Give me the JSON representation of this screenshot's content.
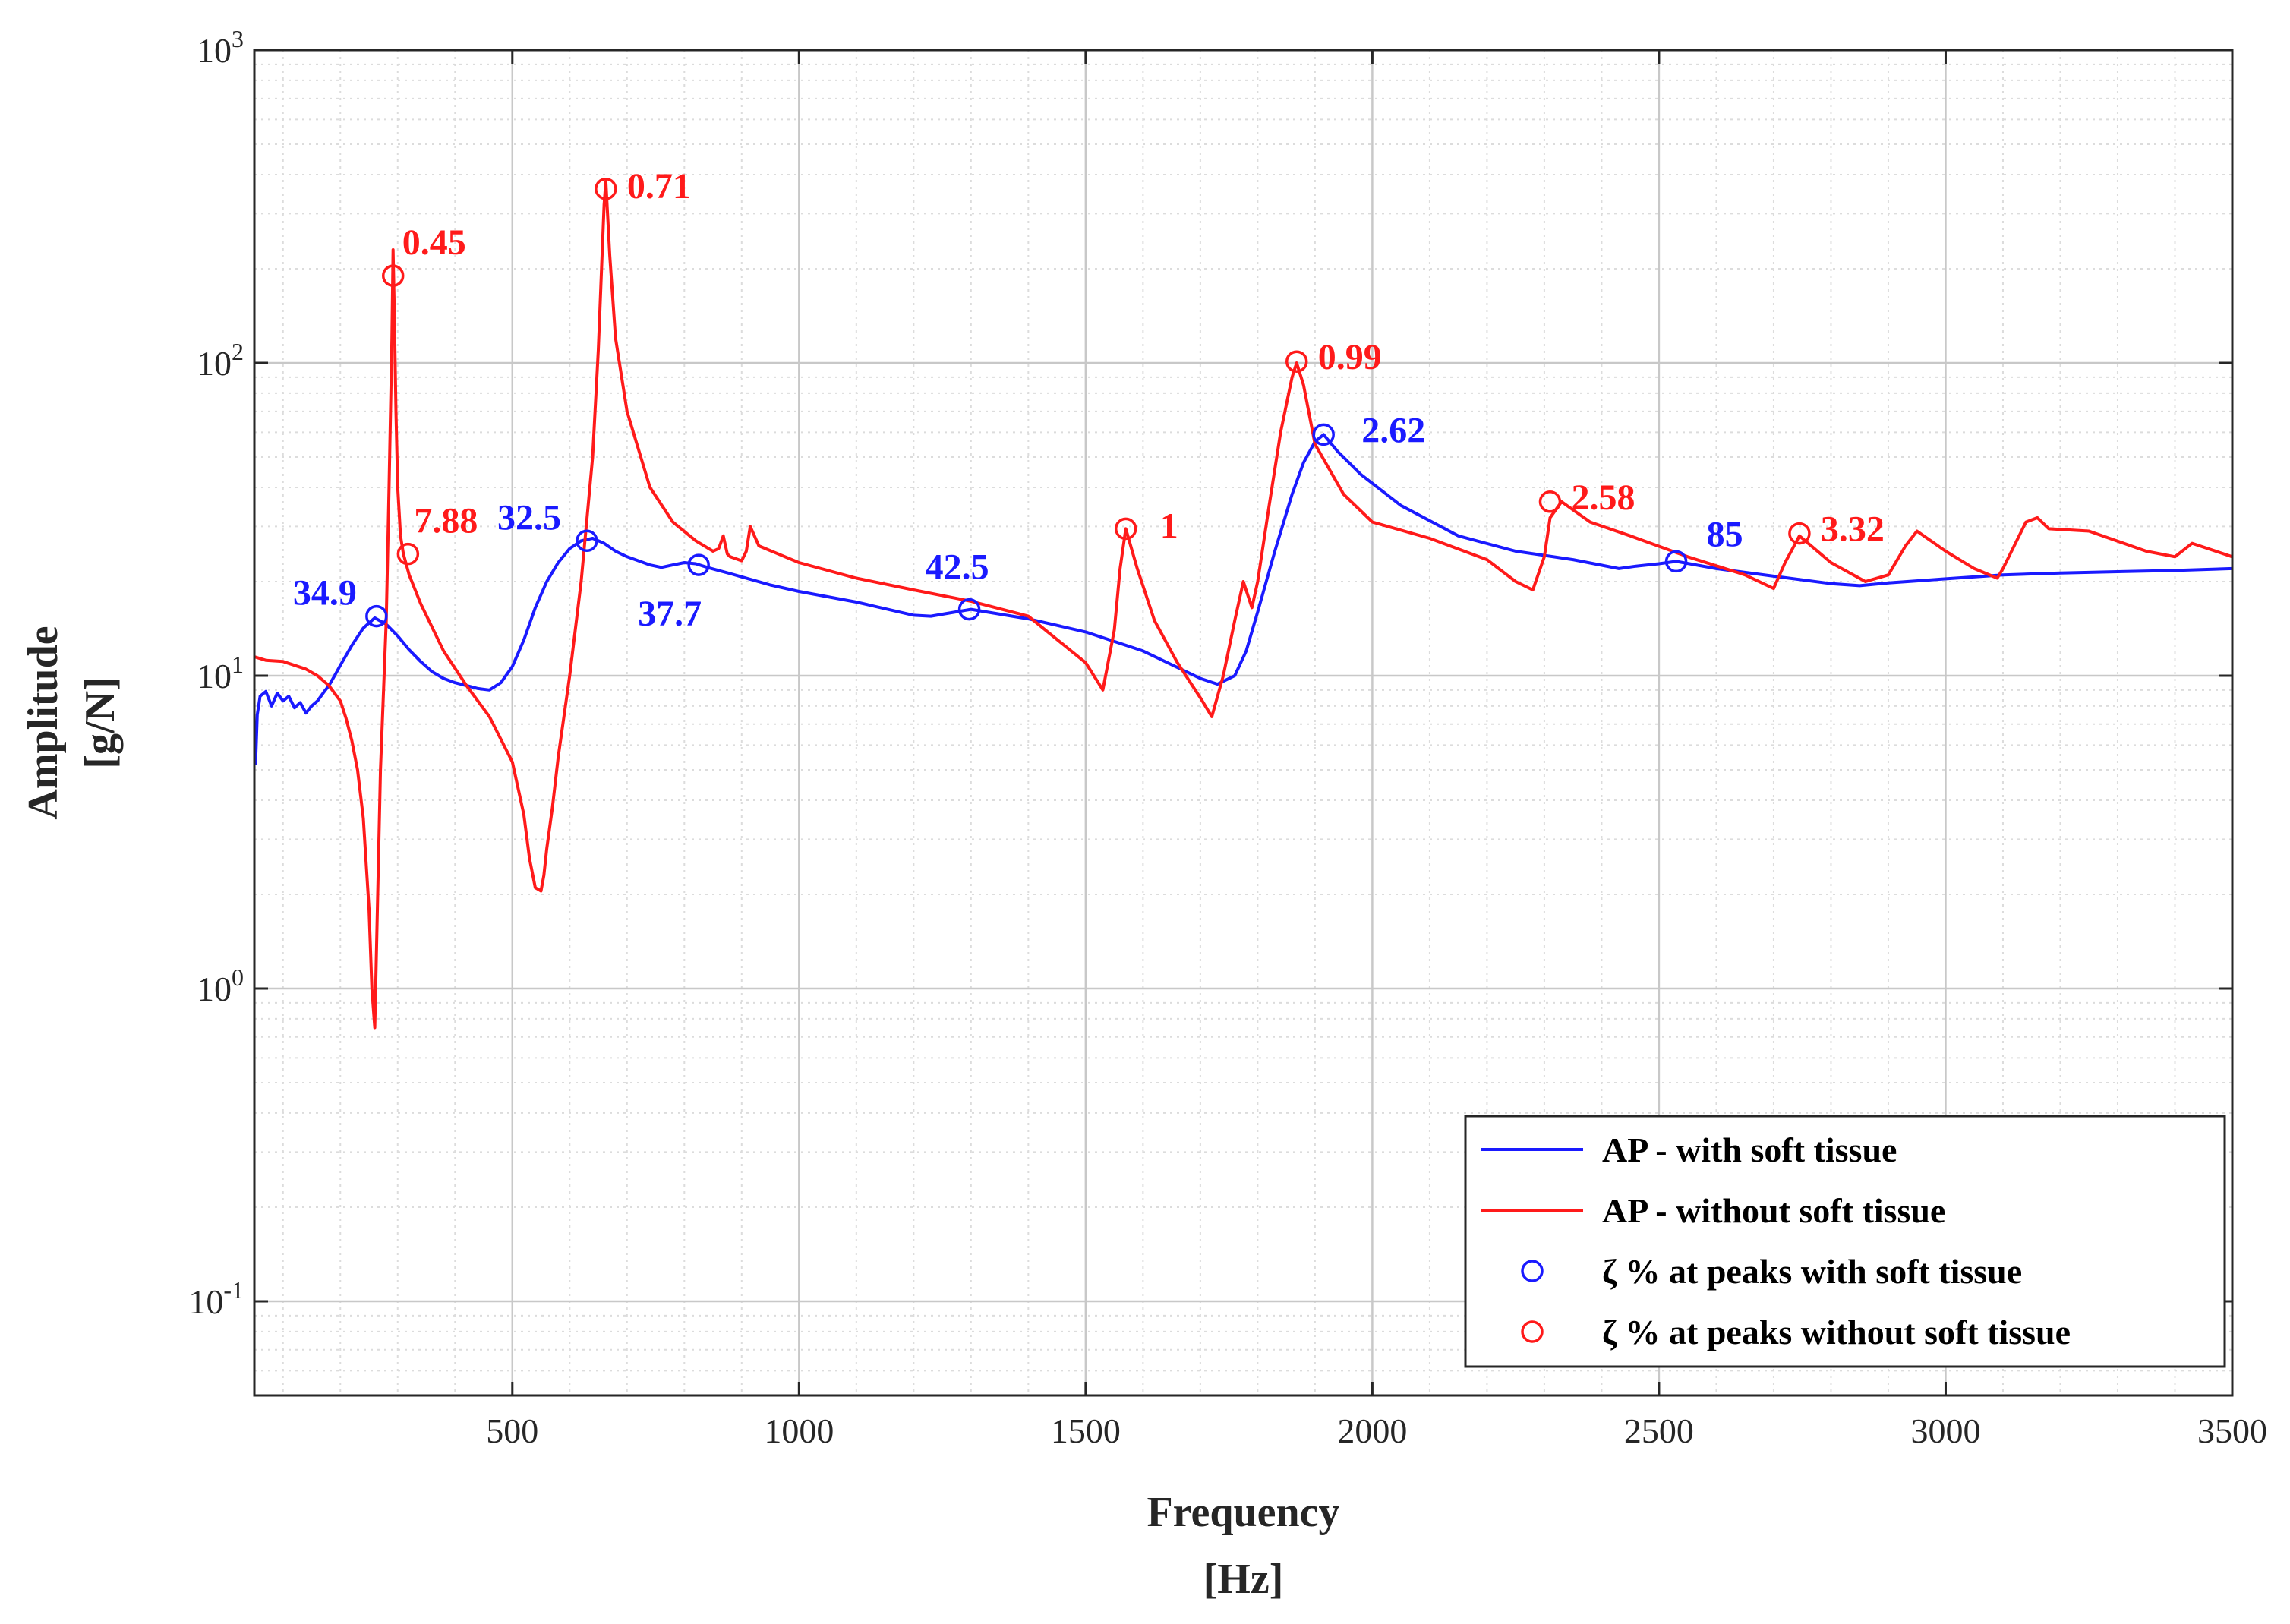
{
  "chart_data": {
    "type": "line",
    "title": "",
    "xlabel": "Frequency",
    "xunit": "[Hz]",
    "ylabel": "Amplitude",
    "yunit": "[g/N]",
    "xscale": "linear",
    "yscale": "log",
    "xlim": [
      50,
      3500
    ],
    "ylim": [
      0.05,
      1000
    ],
    "xticks": [
      500,
      1000,
      1500,
      2000,
      2500,
      3000,
      3500
    ],
    "xtick_labels": [
      "500",
      "1000",
      "1500",
      "2000",
      "2500",
      "3000",
      "3500"
    ],
    "yticks": [
      {
        "value": 1000,
        "base": "10",
        "exp": "3"
      },
      {
        "value": 100,
        "base": "10",
        "exp": "2"
      },
      {
        "value": 10,
        "base": "10",
        "exp": "1"
      },
      {
        "value": 1,
        "base": "10",
        "exp": "0"
      },
      {
        "value": 0.1,
        "base": "10",
        "exp": "-1"
      }
    ],
    "grid": true,
    "minor_grid": true,
    "legend_position": "bottom-right",
    "colors": {
      "with": "#1a1aff",
      "without": "#ff1a1a",
      "axis": "#262626",
      "grid": "#dcdcdc"
    },
    "series": [
      {
        "name": "AP - with soft tissue",
        "color": "#1a1aff",
        "x": [
          52,
          55,
          60,
          70,
          80,
          90,
          100,
          110,
          120,
          130,
          140,
          150,
          160,
          170,
          180,
          190,
          200,
          220,
          240,
          260,
          280,
          300,
          320,
          340,
          360,
          380,
          400,
          420,
          440,
          460,
          480,
          500,
          520,
          540,
          560,
          580,
          600,
          620,
          640,
          660,
          680,
          700,
          720,
          740,
          760,
          780,
          800,
          820,
          840,
          860,
          880,
          900,
          950,
          1000,
          1100,
          1200,
          1230,
          1300,
          1400,
          1500,
          1600,
          1700,
          1730,
          1760,
          1780,
          1800,
          1830,
          1860,
          1880,
          1900,
          1915,
          1940,
          1980,
          2050,
          2150,
          2250,
          2350,
          2430,
          2460,
          2500,
          2530,
          2600,
          2700,
          2800,
          2850,
          2900,
          3000,
          3100,
          3200,
          3300,
          3400,
          3500
        ],
        "y": [
          5.2,
          7.5,
          8.6,
          8.9,
          8.0,
          8.8,
          8.3,
          8.6,
          7.9,
          8.2,
          7.6,
          8.0,
          8.3,
          8.8,
          9.3,
          10.0,
          10.8,
          12.5,
          14.2,
          15.3,
          14.6,
          13.4,
          12.1,
          11.1,
          10.3,
          9.8,
          9.5,
          9.3,
          9.1,
          9.0,
          9.5,
          10.7,
          13.0,
          16.5,
          20.0,
          23.0,
          25.5,
          27.0,
          27.5,
          26.5,
          25.0,
          24.0,
          23.3,
          22.6,
          22.2,
          22.6,
          23.0,
          22.8,
          22.2,
          21.7,
          21.2,
          20.7,
          19.5,
          18.6,
          17.2,
          15.6,
          15.5,
          16.3,
          15.2,
          13.8,
          12.0,
          9.8,
          9.4,
          10.0,
          12.0,
          16.0,
          25.0,
          38.0,
          48.0,
          56.0,
          59.0,
          52.0,
          44.0,
          35.0,
          28.0,
          25.0,
          23.5,
          22.0,
          22.4,
          22.8,
          23.2,
          22.0,
          20.8,
          19.7,
          19.4,
          19.8,
          20.4,
          21.0,
          21.3,
          21.5,
          21.7,
          22.0
        ]
      },
      {
        "name": "AP - without soft tissue",
        "color": "#ff1a1a",
        "x": [
          50,
          70,
          100,
          140,
          160,
          180,
          200,
          210,
          220,
          230,
          240,
          250,
          255,
          260,
          270,
          280,
          285,
          290,
          292,
          294,
          297,
          300,
          305,
          310,
          320,
          340,
          380,
          420,
          460,
          500,
          520,
          530,
          540,
          550,
          555,
          560,
          570,
          580,
          600,
          620,
          640,
          650,
          660,
          663,
          670,
          680,
          700,
          740,
          780,
          820,
          850,
          860,
          868,
          875,
          880,
          900,
          908,
          915,
          930,
          1000,
          1100,
          1200,
          1300,
          1400,
          1500,
          1530,
          1550,
          1560,
          1570,
          1590,
          1620,
          1660,
          1700,
          1720,
          1740,
          1760,
          1775,
          1790,
          1800,
          1820,
          1840,
          1860,
          1868,
          1880,
          1900,
          1950,
          2000,
          2100,
          2200,
          2250,
          2280,
          2300,
          2310,
          2330,
          2380,
          2450,
          2550,
          2650,
          2700,
          2720,
          2745,
          2800,
          2860,
          2900,
          2930,
          2950,
          3000,
          3050,
          3090,
          3100,
          3140,
          3160,
          3180,
          3250,
          3350,
          3400,
          3430,
          3500
        ],
        "y": [
          11.5,
          11.2,
          11.1,
          10.5,
          10.0,
          9.3,
          8.3,
          7.3,
          6.2,
          5.0,
          3.5,
          1.8,
          1.0,
          0.75,
          5.0,
          15.0,
          40.0,
          120.0,
          230.0,
          150.0,
          70.0,
          40.0,
          28.0,
          24.5,
          21.0,
          17.0,
          12.0,
          9.3,
          7.4,
          5.3,
          3.6,
          2.6,
          2.1,
          2.05,
          2.3,
          2.8,
          3.8,
          5.5,
          10.0,
          20.0,
          50.0,
          110.0,
          320.0,
          380.0,
          220.0,
          120.0,
          70.0,
          40.0,
          31.0,
          27.0,
          25.0,
          25.5,
          28.0,
          24.5,
          24.0,
          23.3,
          25.0,
          30.0,
          26.0,
          23.0,
          20.5,
          18.8,
          17.3,
          15.5,
          11.0,
          9.0,
          14.0,
          22.0,
          29.5,
          22.0,
          15.0,
          11.0,
          8.5,
          7.4,
          10.0,
          15.0,
          20.0,
          16.5,
          20.0,
          35.0,
          60.0,
          90.0,
          100.0,
          85.0,
          55.0,
          38.0,
          31.0,
          27.5,
          23.5,
          20.0,
          18.8,
          24.0,
          32.0,
          36.0,
          31.0,
          28.0,
          24.0,
          21.0,
          19.0,
          23.0,
          28.0,
          23.0,
          20.0,
          21.0,
          26.0,
          29.0,
          25.0,
          22.0,
          20.5,
          22.0,
          31.0,
          32.0,
          29.5,
          29.0,
          25.0,
          24.0,
          26.5,
          24.0
        ]
      }
    ],
    "markers": [
      {
        "series": "with",
        "x": 263,
        "y": 15.5,
        "label": "34.9"
      },
      {
        "series": "with",
        "x": 630,
        "y": 27.0,
        "label": "32.5"
      },
      {
        "series": "with",
        "x": 825,
        "y": 22.6,
        "label": "37.7"
      },
      {
        "series": "with",
        "x": 1297,
        "y": 16.3,
        "label": "42.5"
      },
      {
        "series": "with",
        "x": 1915,
        "y": 59.0,
        "label": "2.62"
      },
      {
        "series": "with",
        "x": 2530,
        "y": 23.2,
        "label": "85"
      },
      {
        "series": "without",
        "x": 292,
        "y": 190.0,
        "label": "0.45"
      },
      {
        "series": "without",
        "x": 318,
        "y": 24.5,
        "label": "7.88"
      },
      {
        "series": "without",
        "x": 663,
        "y": 360.0,
        "label": "0.71"
      },
      {
        "series": "without",
        "x": 1570,
        "y": 29.5,
        "label": "1"
      },
      {
        "series": "without",
        "x": 1868,
        "y": 101.0,
        "label": "0.99"
      },
      {
        "series": "without",
        "x": 2310,
        "y": 36.0,
        "label": "2.58"
      },
      {
        "series": "without",
        "x": 2745,
        "y": 28.5,
        "label": "3.32"
      }
    ],
    "legend": [
      {
        "label": "AP - with soft tissue",
        "kind": "line",
        "color": "#1a1aff"
      },
      {
        "label": "AP - without soft tissue",
        "kind": "line",
        "color": "#ff1a1a"
      },
      {
        "label": "ζ % at peaks with soft tissue",
        "kind": "marker",
        "color": "#1a1aff"
      },
      {
        "label": "ζ % at peaks without soft tissue",
        "kind": "marker",
        "color": "#ff1a1a"
      }
    ]
  }
}
